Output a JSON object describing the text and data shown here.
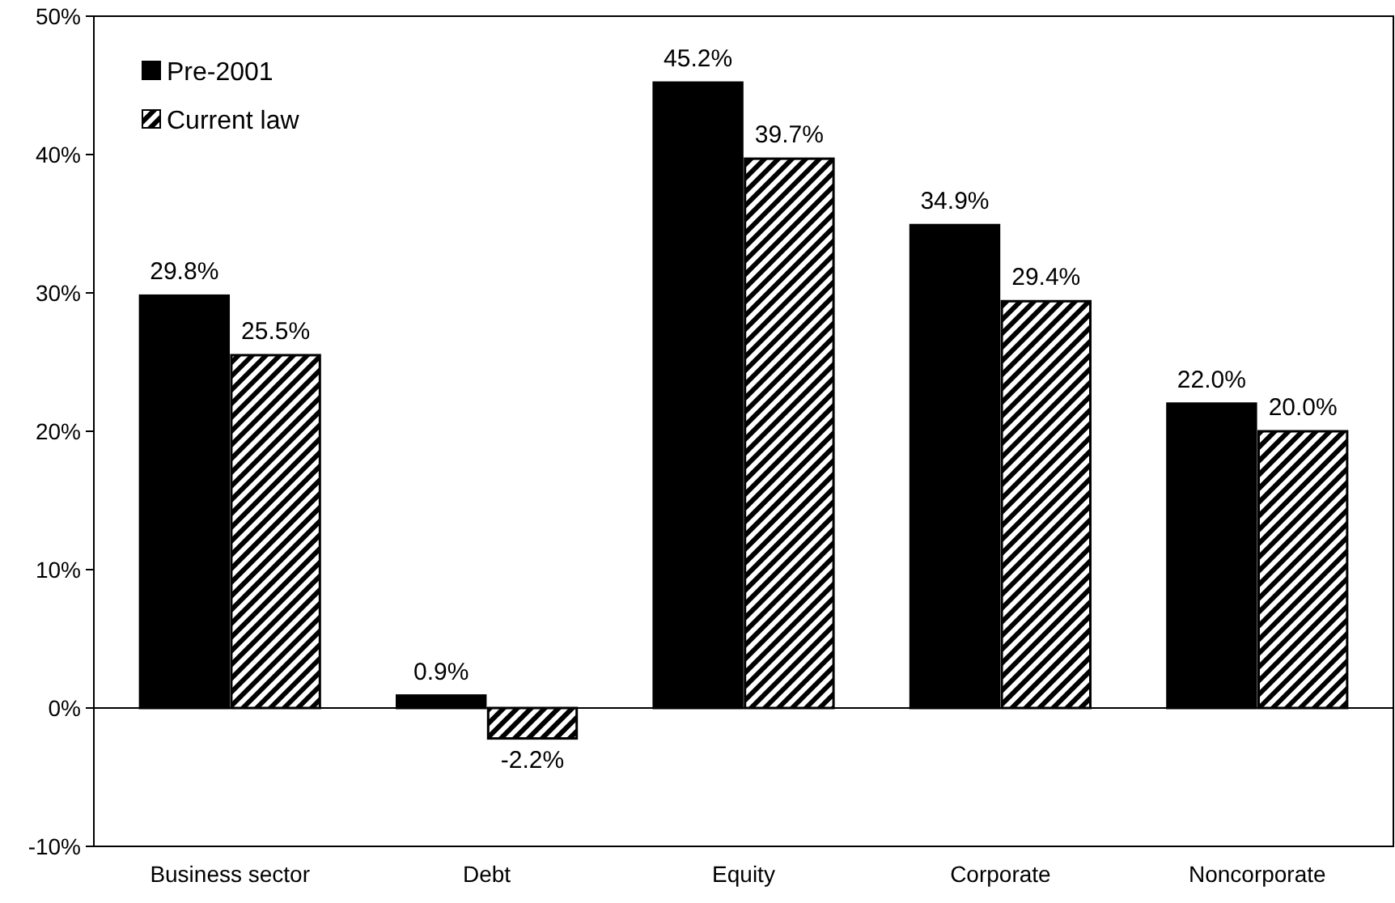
{
  "chart_data": {
    "type": "bar",
    "categories": [
      "Business sector",
      "Debt",
      "Equity",
      "Corporate",
      "Noncorporate"
    ],
    "series": [
      {
        "name": "Pre-2001",
        "color": "#000000",
        "values": [
          29.8,
          0.9,
          45.2,
          34.9,
          22.0
        ],
        "value_labels": [
          "29.8%",
          "0.9%",
          "45.2%",
          "34.9%",
          "22.0%"
        ]
      },
      {
        "name": "Current law",
        "color": "#000000",
        "values": [
          25.5,
          -2.2,
          39.7,
          29.4,
          20.0
        ],
        "value_labels": [
          "25.5%",
          "-2.2%",
          "39.7%",
          "29.4%",
          "20.0%"
        ]
      }
    ],
    "ylim": [
      -10,
      50
    ],
    "yticks": [
      {
        "value": -10,
        "label": "-10%"
      },
      {
        "value": 0,
        "label": "0%"
      },
      {
        "value": 10,
        "label": "10%"
      },
      {
        "value": 20,
        "label": "20%"
      },
      {
        "value": 30,
        "label": "30%"
      },
      {
        "value": 40,
        "label": "40%"
      },
      {
        "value": 50,
        "label": "50%"
      }
    ],
    "legend": "top left"
  }
}
